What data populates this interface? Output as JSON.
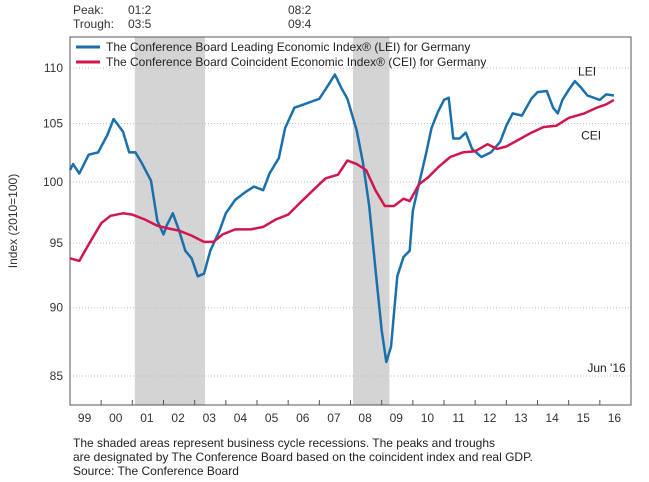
{
  "header": {
    "peak_label": "Peak:",
    "trough_label": "Trough:",
    "recessions": [
      {
        "peak": "01:2",
        "trough": "03:5"
      },
      {
        "peak": "08:2",
        "trough": "09:4"
      }
    ]
  },
  "footer": {
    "line1": "The shaded areas represent business cycle recessions. The peaks and troughs",
    "line2": "are designated by The Conference Board based on the coincident index and real GDP.",
    "line3": "Source: The Conference Board"
  },
  "chart_data": {
    "type": "line",
    "title": "",
    "xlabel": "",
    "ylabel": "Index (2010=100)",
    "yscale": "log",
    "ylim": [
      83.5,
      111.5
    ],
    "xlim": [
      1999.0,
      2017.0
    ],
    "yticks": [
      85,
      90,
      95,
      100,
      105,
      110
    ],
    "xtick_labels": [
      "99",
      "00",
      "01",
      "02",
      "03",
      "04",
      "05",
      "06",
      "07",
      "08",
      "09",
      "10",
      "11",
      "12",
      "13",
      "14",
      "15",
      "16"
    ],
    "grid": true,
    "legend_position": "top-left",
    "colors": {
      "LEI": "#1a6fad",
      "CEI": "#d1164f",
      "recession": "#d4d4d4"
    },
    "recession_periods": [
      {
        "start": 2001.08,
        "end": 2003.33,
        "peak": "01:2",
        "trough": "03:5"
      },
      {
        "start": 2008.08,
        "end": 2009.25,
        "peak": "08:2",
        "trough": "09:4"
      }
    ],
    "annotations": [
      {
        "text": "LEI",
        "x": 2015.3,
        "y": 109.3
      },
      {
        "text": "CEI",
        "x": 2015.4,
        "y": 103.6
      },
      {
        "text": "Jun '16",
        "x": 2015.6,
        "y": 85.3
      }
    ],
    "series": [
      {
        "name": "The Conference Board Leading Economic Index® (LEI) for Germany",
        "short": "LEI",
        "x": [
          1999.0,
          1999.1,
          1999.3,
          1999.6,
          1999.9,
          2000.2,
          2000.4,
          2000.7,
          2000.9,
          2001.1,
          2001.3,
          2001.6,
          2001.8,
          2002.0,
          2002.1,
          2002.3,
          2002.5,
          2002.7,
          2002.9,
          2003.1,
          2003.3,
          2003.5,
          2003.8,
          2004.0,
          2004.3,
          2004.6,
          2004.9,
          2005.2,
          2005.4,
          2005.7,
          2005.9,
          2006.2,
          2006.5,
          2006.8,
          2007.0,
          2007.3,
          2007.5,
          2007.7,
          2007.9,
          2008.2,
          2008.4,
          2008.6,
          2008.8,
          2009.0,
          2009.15,
          2009.3,
          2009.5,
          2009.7,
          2009.9,
          2010.0,
          2010.2,
          2010.4,
          2010.6,
          2010.8,
          2011.0,
          2011.15,
          2011.3,
          2011.5,
          2011.7,
          2011.9,
          2012.2,
          2012.5,
          2012.8,
          2013.0,
          2013.2,
          2013.5,
          2013.8,
          2014.0,
          2014.3,
          2014.5,
          2014.65,
          2014.8,
          2015.0,
          2015.2,
          2015.4,
          2015.6,
          2015.8,
          2016.0,
          2016.2,
          2016.45
        ],
        "values": [
          101.0,
          101.5,
          100.7,
          102.3,
          102.5,
          104.0,
          105.4,
          104.3,
          102.5,
          102.5,
          101.6,
          100.1,
          96.8,
          95.7,
          96.4,
          97.4,
          96.0,
          94.4,
          93.8,
          92.4,
          92.6,
          94.4,
          96.0,
          97.4,
          98.5,
          99.1,
          99.6,
          99.3,
          100.7,
          102.0,
          104.6,
          106.4,
          106.7,
          107.0,
          107.2,
          108.5,
          109.4,
          108.2,
          107.2,
          104.4,
          101.6,
          98.0,
          93.0,
          88.3,
          86.0,
          87.1,
          92.4,
          93.9,
          94.4,
          97.6,
          99.9,
          102.1,
          104.6,
          106.0,
          107.1,
          107.3,
          103.7,
          103.7,
          104.2,
          102.8,
          102.1,
          102.5,
          103.4,
          104.8,
          105.9,
          105.7,
          107.2,
          107.8,
          107.9,
          106.4,
          105.9,
          107.1,
          108.0,
          108.8,
          108.2,
          107.5,
          107.3,
          107.1,
          107.6,
          107.5
        ]
      },
      {
        "name": "The Conference Board Coincident Economic Index® (CEI) for Germany",
        "short": "CEI",
        "x": [
          1999.0,
          1999.3,
          1999.6,
          2000.0,
          2000.3,
          2000.7,
          2001.0,
          2001.4,
          2001.8,
          2002.1,
          2002.5,
          2002.9,
          2003.3,
          2003.6,
          2003.9,
          2004.3,
          2004.8,
          2005.2,
          2005.6,
          2006.0,
          2006.4,
          2006.8,
          2007.2,
          2007.6,
          2007.9,
          2008.2,
          2008.5,
          2008.8,
          2009.1,
          2009.4,
          2009.7,
          2009.9,
          2010.2,
          2010.5,
          2010.8,
          2011.2,
          2011.6,
          2012.0,
          2012.4,
          2012.7,
          2013.0,
          2013.4,
          2013.8,
          2014.2,
          2014.6,
          2015.0,
          2015.5,
          2015.9,
          2016.2,
          2016.45
        ],
        "values": [
          93.8,
          93.6,
          94.9,
          96.6,
          97.2,
          97.4,
          97.3,
          96.9,
          96.4,
          96.2,
          96.0,
          95.6,
          95.1,
          95.1,
          95.7,
          96.1,
          96.1,
          96.3,
          96.9,
          97.3,
          98.3,
          99.3,
          100.3,
          100.6,
          101.8,
          101.5,
          101.0,
          99.3,
          98.0,
          98.0,
          98.6,
          98.4,
          99.8,
          100.4,
          101.2,
          102.1,
          102.5,
          102.6,
          103.2,
          102.8,
          103.0,
          103.6,
          104.2,
          104.7,
          104.8,
          105.5,
          105.9,
          106.4,
          106.7,
          107.1
        ]
      }
    ]
  }
}
